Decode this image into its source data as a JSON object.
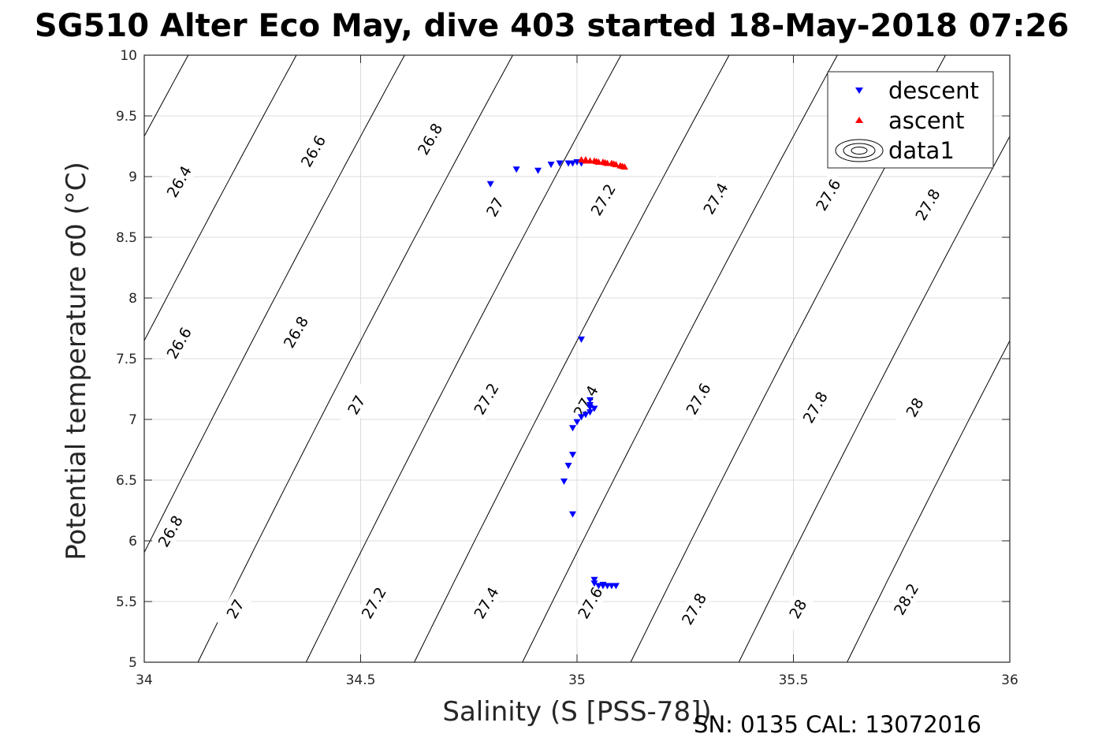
{
  "chart_data": {
    "type": "scatter",
    "title": "SG510 Alter Eco May, dive 403 started 18-May-2018 07:26",
    "xlabel": "Salinity (S [PSS-78])",
    "ylabel": "Potential temperature σ0 (°C)",
    "xlim": [
      34,
      36
    ],
    "ylim": [
      5,
      10
    ],
    "x_ticks": [
      34,
      34.5,
      35,
      35.5,
      36
    ],
    "x_tick_labels": [
      "34",
      "34.5",
      "35",
      "35.5",
      "36"
    ],
    "y_ticks": [
      5,
      5.5,
      6,
      6.5,
      7,
      7.5,
      8,
      8.5,
      9,
      9.5,
      10
    ],
    "y_tick_labels": [
      "5",
      "5.5",
      "6",
      "6.5",
      "7",
      "7.5",
      "8",
      "8.5",
      "9",
      "9.5",
      "10"
    ],
    "grid": true,
    "legend_position": "top-right",
    "footer": "SN: 0135  CAL: 13072016",
    "series": [
      {
        "name": "descent",
        "marker": "triangle-down",
        "color": "#0000ff",
        "points": [
          [
            34.8,
            8.94
          ],
          [
            34.86,
            9.06
          ],
          [
            34.91,
            9.05
          ],
          [
            34.94,
            9.1
          ],
          [
            34.96,
            9.11
          ],
          [
            34.98,
            9.11
          ],
          [
            34.99,
            9.11
          ],
          [
            35.0,
            9.12
          ],
          [
            35.01,
            9.11
          ],
          [
            35.01,
            7.66
          ],
          [
            35.03,
            7.16
          ],
          [
            35.03,
            7.12
          ],
          [
            35.03,
            7.1
          ],
          [
            35.04,
            7.09
          ],
          [
            35.03,
            7.06
          ],
          [
            35.02,
            7.04
          ],
          [
            35.01,
            7.02
          ],
          [
            35.0,
            6.98
          ],
          [
            34.99,
            6.93
          ],
          [
            34.99,
            6.71
          ],
          [
            34.98,
            6.62
          ],
          [
            34.97,
            6.49
          ],
          [
            34.99,
            6.22
          ],
          [
            35.04,
            5.68
          ],
          [
            35.04,
            5.65
          ],
          [
            35.05,
            5.63
          ],
          [
            35.06,
            5.63
          ],
          [
            35.07,
            5.63
          ],
          [
            35.08,
            5.63
          ],
          [
            35.09,
            5.63
          ],
          [
            35.06,
            5.64
          ]
        ]
      },
      {
        "name": "ascent",
        "marker": "triangle-up",
        "color": "#ff0000",
        "points": [
          [
            35.01,
            9.14
          ],
          [
            35.02,
            9.13
          ],
          [
            35.03,
            9.13
          ],
          [
            35.04,
            9.13
          ],
          [
            35.05,
            9.12
          ],
          [
            35.06,
            9.12
          ],
          [
            35.07,
            9.11
          ],
          [
            35.08,
            9.11
          ],
          [
            35.09,
            9.1
          ],
          [
            35.1,
            9.09
          ],
          [
            35.11,
            9.08
          ],
          [
            35.02,
            9.14
          ],
          [
            35.045,
            9.125
          ],
          [
            35.065,
            9.115
          ],
          [
            35.085,
            9.105
          ],
          [
            35.105,
            9.085
          ]
        ]
      },
      {
        "name": "data1",
        "marker": "contour",
        "color": "#000000",
        "isopycnals": [
          {
            "level": "26.4",
            "labels": [
              {
                "s": 34.08,
                "t": 8.96
              }
            ]
          },
          {
            "level": "26.6",
            "labels": [
              {
                "s": 34.39,
                "t": 9.21
              },
              {
                "s": 34.08,
                "t": 7.63
              }
            ]
          },
          {
            "level": "26.8",
            "labels": [
              {
                "s": 34.66,
                "t": 9.31
              },
              {
                "s": 34.35,
                "t": 7.72
              },
              {
                "s": 34.06,
                "t": 6.08
              }
            ]
          },
          {
            "level": "27",
            "labels": [
              {
                "s": 34.81,
                "t": 8.75
              },
              {
                "s": 34.49,
                "t": 7.12
              },
              {
                "s": 34.21,
                "t": 5.44
              }
            ]
          },
          {
            "level": "27.2",
            "labels": [
              {
                "s": 35.06,
                "t": 8.81
              },
              {
                "s": 34.79,
                "t": 7.17
              },
              {
                "s": 34.53,
                "t": 5.49
              }
            ]
          },
          {
            "level": "27.4",
            "labels": [
              {
                "s": 35.32,
                "t": 8.82
              },
              {
                "s": 35.02,
                "t": 7.15
              },
              {
                "s": 34.79,
                "t": 5.49
              }
            ]
          },
          {
            "level": "27.6",
            "labels": [
              {
                "s": 35.58,
                "t": 8.85
              },
              {
                "s": 35.28,
                "t": 7.17
              },
              {
                "s": 35.03,
                "t": 5.49
              }
            ]
          },
          {
            "level": "27.8",
            "labels": [
              {
                "s": 35.81,
                "t": 8.77
              },
              {
                "s": 35.55,
                "t": 7.1
              },
              {
                "s": 35.27,
                "t": 5.44
              }
            ]
          },
          {
            "level": "28",
            "labels": [
              {
                "s": 35.78,
                "t": 7.1
              },
              {
                "s": 35.51,
                "t": 5.44
              }
            ]
          },
          {
            "level": "28.2",
            "labels": [
              {
                "s": 35.76,
                "t": 5.52
              }
            ]
          }
        ]
      }
    ]
  }
}
